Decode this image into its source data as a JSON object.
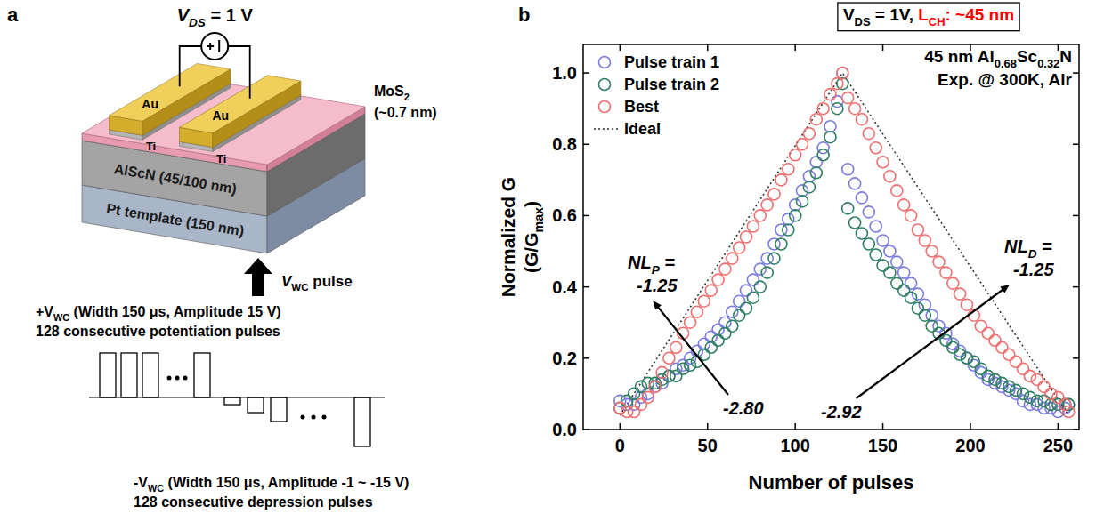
{
  "diagram": {
    "letter": "a",
    "bias": [
      {
        "text": "V",
        "italic": true
      },
      {
        "text": "DS",
        "sub": true,
        "italic": true
      },
      " = 1 V"
    ],
    "electrodes": [
      "Au",
      "Au"
    ],
    "contacts": [
      "Ti",
      "Ti"
    ],
    "channel": [
      "MoS",
      {
        "text": "2",
        "sub": true
      }
    ],
    "channel_thickness": "(~0.7 nm)",
    "ferroelectric": "AlScN (45/100 nm)",
    "bottom": "Pt template (150 nm)",
    "pulse_label": [
      {
        "text": "V",
        "italic": true
      },
      {
        "text": "WC",
        "sub": true
      },
      " pulse"
    ],
    "potentiation": [
      [
        "+V",
        {
          "text": "WC",
          "sub": true
        },
        " (Width 150 μs, Amplitude 15 V)"
      ],
      [
        "128 consecutive potentiation pulses"
      ]
    ],
    "depression": [
      [
        "-V",
        {
          "text": "WC",
          "sub": true
        },
        " (Width 150 μs, Amplitude -1 ~ -15 V)"
      ],
      [
        "128 consecutive depression pulses"
      ]
    ]
  },
  "chart_data": {
    "type": "scatter",
    "letter": "b",
    "title": [
      {
        "text": "V"
      },
      {
        "text": "DS",
        "sub": true
      },
      {
        "text": " = 1V, "
      },
      {
        "text": "L",
        "color": "#ff0000"
      },
      {
        "text": "CH",
        "sub": true,
        "color": "#ff0000"
      },
      {
        "text": ": ~45 nm",
        "color": "#ff0000"
      }
    ],
    "info": [
      [
        "45 nm Al",
        {
          "text": "0.68",
          "sub": true
        },
        "Sc",
        {
          "text": "0.32",
          "sub": true
        },
        "N"
      ],
      [
        "Exp. @ 300K, Air"
      ]
    ],
    "x_label": "Number of pulses",
    "y_label": [
      [
        "Normalized G"
      ],
      [
        "(G/G",
        {
          "text": "max",
          "sub": true
        },
        ")"
      ]
    ],
    "x": [
      0,
      4,
      8,
      12,
      16,
      20,
      24,
      28,
      32,
      36,
      40,
      44,
      48,
      52,
      56,
      60,
      64,
      68,
      72,
      76,
      80,
      84,
      88,
      92,
      96,
      100,
      104,
      108,
      112,
      116,
      120,
      124,
      127,
      130,
      134,
      138,
      142,
      146,
      150,
      154,
      158,
      162,
      166,
      170,
      174,
      178,
      182,
      186,
      190,
      194,
      198,
      202,
      206,
      210,
      214,
      218,
      222,
      226,
      230,
      234,
      238,
      242,
      246,
      250,
      254,
      256
    ],
    "xlim": [
      -21,
      262
    ],
    "xticks": [
      0,
      50,
      100,
      150,
      200,
      250
    ],
    "ylim": [
      0,
      1.08
    ],
    "yticks": [
      {
        "value": 0,
        "label": "0.0"
      },
      0.2,
      0.4,
      0.6,
      0.8,
      {
        "value": 1,
        "label": "1.0"
      }
    ],
    "legend": "upper left",
    "series": [
      {
        "name": "Pulse train 1",
        "color": "#7b7be0",
        "marker": "circle",
        "values": [
          0.08,
          0.07,
          0.07,
          0.09,
          0.1,
          0.12,
          0.13,
          0.15,
          0.17,
          0.18,
          0.2,
          0.22,
          0.24,
          0.26,
          0.28,
          0.3,
          0.33,
          0.36,
          0.39,
          0.42,
          0.45,
          0.48,
          0.52,
          0.56,
          0.59,
          0.63,
          0.67,
          0.71,
          0.75,
          0.79,
          0.85,
          0.92,
          1.0,
          0.73,
          0.69,
          0.65,
          0.61,
          0.57,
          0.53,
          0.5,
          0.47,
          0.44,
          0.41,
          0.38,
          0.35,
          0.32,
          0.29,
          0.27,
          0.24,
          0.22,
          0.2,
          0.18,
          0.16,
          0.14,
          0.13,
          0.12,
          0.11,
          0.1,
          0.08,
          0.07,
          0.07,
          0.06,
          0.06,
          0.05,
          0.06,
          0.07
        ]
      },
      {
        "name": "Pulse train 2",
        "color": "#2f7f62",
        "marker": "circle",
        "values": [
          0.06,
          0.08,
          0.1,
          0.12,
          0.13,
          0.13,
          0.14,
          0.15,
          0.15,
          0.17,
          0.18,
          0.19,
          0.21,
          0.23,
          0.25,
          0.27,
          0.29,
          0.32,
          0.34,
          0.37,
          0.4,
          0.44,
          0.48,
          0.52,
          0.56,
          0.6,
          0.64,
          0.68,
          0.72,
          0.77,
          0.82,
          0.9,
          0.97,
          0.62,
          0.58,
          0.55,
          0.52,
          0.49,
          0.46,
          0.44,
          0.41,
          0.39,
          0.37,
          0.34,
          0.32,
          0.29,
          0.27,
          0.25,
          0.23,
          0.21,
          0.2,
          0.19,
          0.17,
          0.15,
          0.14,
          0.13,
          0.12,
          0.11,
          0.1,
          0.09,
          0.08,
          0.08,
          0.07,
          0.07,
          0.07,
          0.07
        ]
      },
      {
        "name": "Best",
        "color": "#ee6f6f",
        "marker": "circle",
        "values": [
          0.06,
          0.05,
          0.05,
          0.07,
          0.09,
          0.12,
          0.16,
          0.2,
          0.23,
          0.27,
          0.3,
          0.33,
          0.36,
          0.39,
          0.42,
          0.45,
          0.48,
          0.51,
          0.54,
          0.57,
          0.6,
          0.63,
          0.66,
          0.7,
          0.73,
          0.77,
          0.8,
          0.83,
          0.87,
          0.9,
          0.94,
          0.97,
          1.0,
          0.93,
          0.9,
          0.87,
          0.83,
          0.79,
          0.75,
          0.71,
          0.67,
          0.63,
          0.6,
          0.56,
          0.53,
          0.5,
          0.47,
          0.44,
          0.41,
          0.38,
          0.35,
          0.32,
          0.29,
          0.27,
          0.25,
          0.23,
          0.21,
          0.19,
          0.17,
          0.15,
          0.14,
          0.12,
          0.1,
          0.09,
          0.07,
          0.05
        ]
      },
      {
        "name": "Ideal",
        "type": "line",
        "line_style": "dotted",
        "color": "#333333",
        "x": [
          0,
          127,
          256
        ],
        "values": [
          0.04,
          1.0,
          0.04
        ]
      }
    ],
    "annotations": [
      {
        "lines": [
          [
            {
              "text": "NL",
              "italic": true
            },
            {
              "text": "P",
              "sub": true,
              "italic": true
            },
            {
              "text": " =",
              "italic": true
            }
          ],
          [
            {
              "text": "-1.25",
              "italic": true
            }
          ]
        ]
      },
      {
        "lines": [
          [
            {
              "text": "NL",
              "italic": true
            },
            {
              "text": "D",
              "sub": true,
              "italic": true
            },
            {
              "text": " =",
              "italic": true
            }
          ],
          [
            {
              "text": "-1.25",
              "italic": true
            }
          ]
        ]
      },
      {
        "lines": [
          [
            {
              "text": "-2.80",
              "italic": true
            }
          ]
        ]
      },
      {
        "lines": [
          [
            {
              "text": "-2.92",
              "italic": true
            }
          ]
        ]
      }
    ]
  }
}
